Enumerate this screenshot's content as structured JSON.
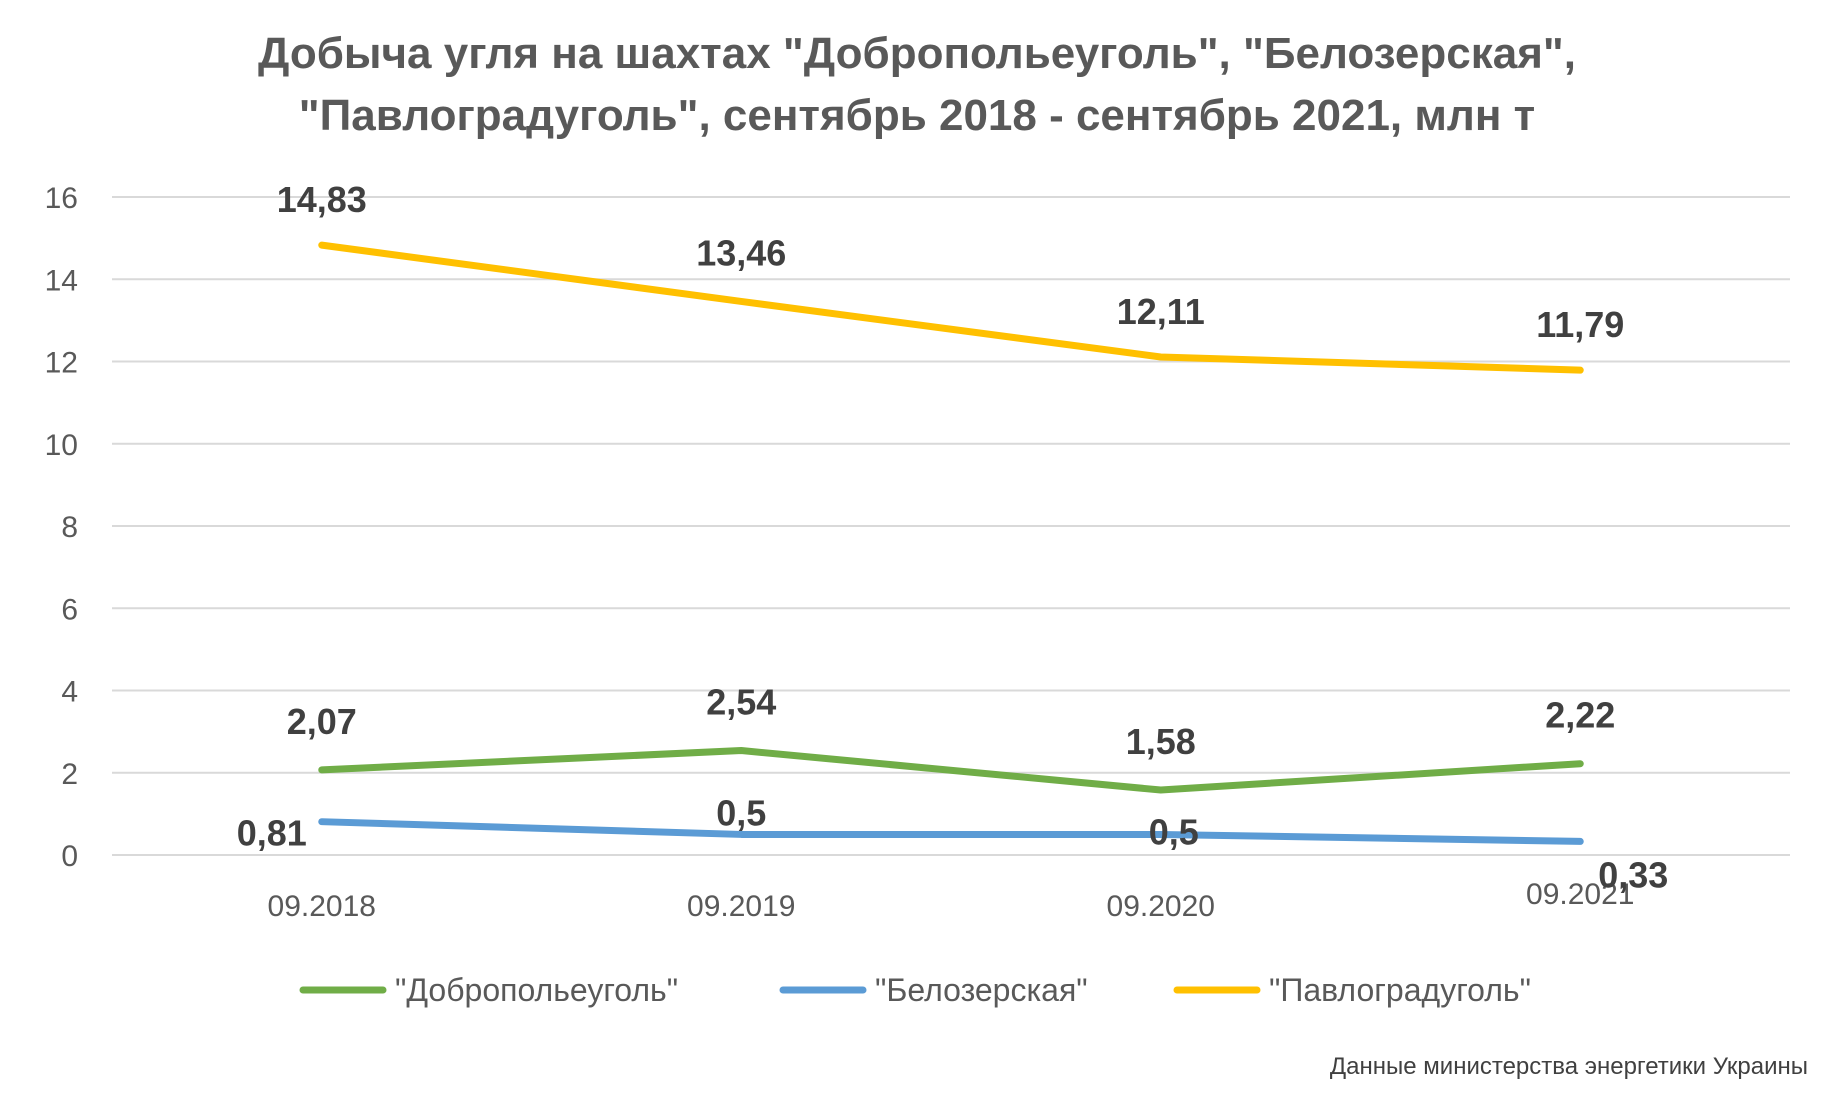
{
  "chart_data": {
    "type": "line",
    "title_line1": "Добыча угля на шахтах \"Добропольеуголь\", \"Белозерская\",",
    "title_line2": "\"Павлоградуголь\", сентябрь 2018 - сентябрь 2021, млн т",
    "categories": [
      "09.2018",
      "09.2019",
      "09.2020",
      "09.2021"
    ],
    "ylim": [
      0,
      16
    ],
    "yticks": [
      "0",
      "2",
      "4",
      "6",
      "8",
      "10",
      "12",
      "14",
      "16"
    ],
    "grid": true,
    "legend_position": "bottom",
    "series": [
      {
        "name": "\"Добропольеуголь\"",
        "color": "#70ad47",
        "values": [
          2.07,
          2.54,
          1.58,
          2.22
        ],
        "labels": [
          "2,07",
          "2,54",
          "1,58",
          "2,22"
        ]
      },
      {
        "name": "\"Белозерская\"",
        "color": "#5b9bd5",
        "values": [
          0.81,
          0.5,
          0.5,
          0.33
        ],
        "labels": [
          "0,81",
          "0,5",
          "0,5",
          "0,33"
        ]
      },
      {
        "name": "\"Павлоградуголь\"",
        "color": "#ffc000",
        "values": [
          14.83,
          13.46,
          12.11,
          11.79
        ],
        "labels": [
          "14,83",
          "13,46",
          "12,11",
          "11,79"
        ]
      }
    ]
  },
  "source_note": "Данные министерства энергетики Украины"
}
